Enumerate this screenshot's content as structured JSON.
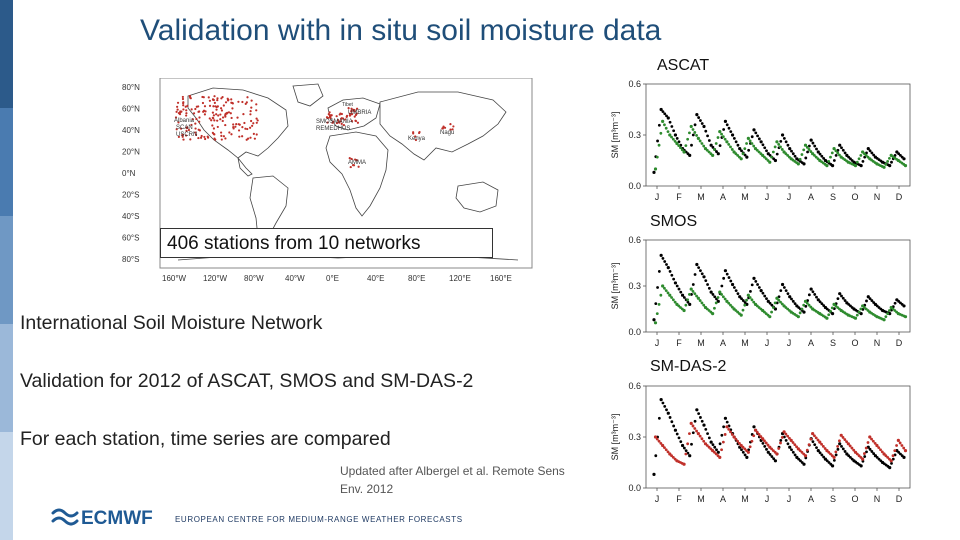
{
  "title": "Validation with in situ soil moisture data",
  "map": {
    "lat_labels": [
      "80°N",
      "60°N",
      "40°N",
      "20°N",
      "0°N",
      "20°S",
      "40°S",
      "60°S",
      "80°S"
    ],
    "lon_labels": [
      "160°W",
      "120°W",
      "80°W",
      "40°W",
      "0°E",
      "40°E",
      "80°E",
      "120°E",
      "160°E"
    ],
    "network_labels": [
      "Albania",
      "SCAN",
      "USCRN",
      "SMOSMANIA",
      "REMEDHUS",
      "UMBRIA",
      "Tibet",
      "Kenya",
      "Nagu",
      "AMMA"
    ],
    "stations_note": "406 stations from 10 networks"
  },
  "bullets": [
    "International Soil Moisture Network",
    "Validation for 2012 of ASCAT, SMOS and SM-DAS-2",
    "For each station, time series are compared"
  ],
  "citation": "Updated after  Albergel et al. Remote Sens Env. 2012",
  "logo_text": "ECMWF",
  "footer": "EUROPEAN CENTRE FOR MEDIUM-RANGE WEATHER FORECASTS",
  "colors": {
    "title": "#1f4e79",
    "insitu": "#000000",
    "ascat": "#2e8b2e",
    "smos": "#2e8b2e",
    "model": "#c0302a",
    "sidebar": [
      "#2c5a8a",
      "#4a7bb0",
      "#6f98c4",
      "#9bb8d9",
      "#c4d6ea"
    ]
  },
  "chart_data": [
    {
      "type": "scatter",
      "title": "ASCAT",
      "ylabel": "SM [m³m⁻³]",
      "ylim": [
        0,
        0.6
      ],
      "yticks": [
        0.0,
        0.3,
        0.6
      ],
      "xlabel": "",
      "categories": [
        "J",
        "F",
        "M",
        "A",
        "M",
        "J",
        "J",
        "A",
        "S",
        "O",
        "N",
        "D"
      ],
      "series": [
        {
          "name": "in situ",
          "color": "#000000",
          "values": [
            0.08,
            0.45,
            0.4,
            0.3,
            0.22,
            0.18,
            0.42,
            0.35,
            0.24,
            0.19,
            0.38,
            0.3,
            0.22,
            0.17,
            0.33,
            0.26,
            0.19,
            0.15,
            0.3,
            0.22,
            0.16,
            0.13,
            0.27,
            0.2,
            0.15,
            0.12,
            0.24,
            0.18,
            0.14,
            0.12,
            0.22,
            0.17,
            0.14,
            0.12,
            0.2,
            0.16
          ]
        },
        {
          "name": "ASCAT",
          "color": "#2e8b2e",
          "values": [
            0.1,
            0.38,
            0.3,
            0.25,
            0.2,
            0.35,
            0.28,
            0.22,
            0.18,
            0.32,
            0.26,
            0.2,
            0.16,
            0.28,
            0.22,
            0.18,
            0.14,
            0.26,
            0.2,
            0.16,
            0.13,
            0.24,
            0.19,
            0.15,
            0.12,
            0.22,
            0.17,
            0.14,
            0.12,
            0.2,
            0.16,
            0.13,
            0.11,
            0.18,
            0.15,
            0.12
          ]
        }
      ]
    },
    {
      "type": "scatter",
      "title": "SMOS",
      "ylabel": "SM [m³m⁻³]",
      "ylim": [
        0,
        0.6
      ],
      "yticks": [
        0.0,
        0.3,
        0.6
      ],
      "xlabel": "",
      "categories": [
        "J",
        "F",
        "M",
        "A",
        "M",
        "J",
        "J",
        "A",
        "S",
        "O",
        "N",
        "D"
      ],
      "series": [
        {
          "name": "in situ",
          "color": "#000000",
          "values": [
            0.08,
            0.5,
            0.42,
            0.32,
            0.24,
            0.18,
            0.44,
            0.36,
            0.26,
            0.2,
            0.4,
            0.31,
            0.23,
            0.18,
            0.35,
            0.27,
            0.2,
            0.15,
            0.31,
            0.23,
            0.17,
            0.13,
            0.28,
            0.21,
            0.16,
            0.12,
            0.25,
            0.19,
            0.15,
            0.12,
            0.23,
            0.18,
            0.14,
            0.12,
            0.21,
            0.17
          ]
        },
        {
          "name": "SMOS",
          "color": "#2e8b2e",
          "values": [
            0.06,
            0.3,
            0.24,
            0.18,
            0.14,
            0.28,
            0.22,
            0.16,
            0.12,
            0.26,
            0.2,
            0.15,
            0.11,
            0.24,
            0.18,
            0.14,
            0.1,
            0.22,
            0.17,
            0.13,
            0.1,
            0.2,
            0.15,
            0.12,
            0.09,
            0.18,
            0.14,
            0.11,
            0.09,
            0.17,
            0.13,
            0.1,
            0.08,
            0.16,
            0.12,
            0.1
          ]
        }
      ]
    },
    {
      "type": "scatter",
      "title": "SM-DAS-2",
      "ylabel": "SM [m³m⁻³]",
      "ylim": [
        0,
        0.6
      ],
      "yticks": [
        0.0,
        0.3,
        0.6
      ],
      "xlabel": "",
      "categories": [
        "J",
        "F",
        "M",
        "A",
        "M",
        "J",
        "J",
        "A",
        "S",
        "O",
        "N",
        "D"
      ],
      "series": [
        {
          "name": "in situ",
          "color": "#000000",
          "values": [
            0.08,
            0.52,
            0.44,
            0.34,
            0.25,
            0.19,
            0.46,
            0.37,
            0.27,
            0.21,
            0.41,
            0.32,
            0.24,
            0.18,
            0.36,
            0.28,
            0.21,
            0.16,
            0.32,
            0.24,
            0.18,
            0.14,
            0.29,
            0.22,
            0.17,
            0.13,
            0.26,
            0.2,
            0.16,
            0.13,
            0.24,
            0.19,
            0.15,
            0.12,
            0.22,
            0.18
          ]
        },
        {
          "name": "SM-DAS-2",
          "color": "#c0302a",
          "values": [
            0.3,
            0.25,
            0.2,
            0.16,
            0.14,
            0.38,
            0.32,
            0.26,
            0.22,
            0.18,
            0.36,
            0.3,
            0.25,
            0.21,
            0.34,
            0.29,
            0.24,
            0.2,
            0.33,
            0.28,
            0.23,
            0.19,
            0.32,
            0.27,
            0.22,
            0.18,
            0.31,
            0.26,
            0.21,
            0.17,
            0.3,
            0.25,
            0.2,
            0.16,
            0.28,
            0.22
          ]
        }
      ]
    }
  ]
}
